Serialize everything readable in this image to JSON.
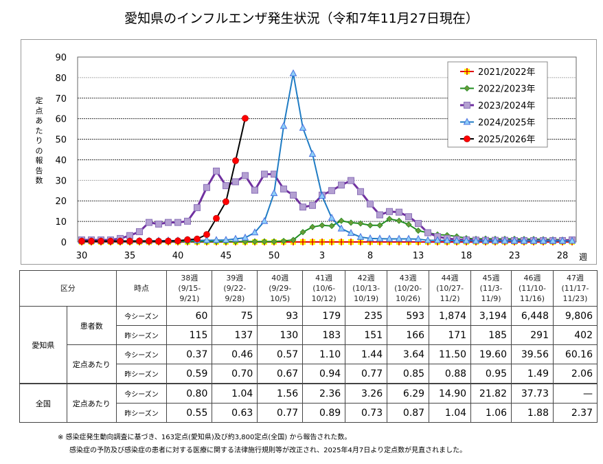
{
  "title": "愛知県のインフルエンザ発生状況（令和7年11月27日現在）",
  "chart_data": {
    "type": "line",
    "title": "愛知県のインフルエンザ発生状況（令和7年11月27日現在）",
    "ylabel": "定点あたりの報告数",
    "xunit": "週",
    "ylim": [
      0,
      90
    ],
    "yticks": [
      0,
      10,
      20,
      30,
      40,
      50,
      60,
      70,
      80,
      90
    ],
    "grid": true,
    "legend_position": "top-right",
    "weeks": [
      30,
      31,
      32,
      33,
      34,
      35,
      36,
      37,
      38,
      39,
      40,
      41,
      42,
      43,
      44,
      45,
      46,
      47,
      48,
      49,
      50,
      51,
      52,
      1,
      2,
      3,
      4,
      5,
      6,
      7,
      8,
      9,
      10,
      11,
      12,
      13,
      14,
      15,
      16,
      17,
      18,
      19,
      20,
      21,
      22,
      23,
      24,
      25,
      26,
      27,
      28,
      29
    ],
    "xtick_labels": [
      "30",
      "35",
      "40",
      "45",
      "50",
      "3",
      "8",
      "13",
      "18",
      "23",
      "28"
    ],
    "series": [
      {
        "name": "2021/2022年",
        "color": "#e00000",
        "marker": "plus",
        "marker_fill": "#ffff00",
        "values": [
          0,
          0,
          0,
          0,
          0,
          0,
          0,
          0,
          0,
          0,
          0,
          0,
          0,
          0,
          0,
          0,
          0,
          0,
          0,
          0,
          0,
          0,
          0,
          0,
          0,
          0,
          0,
          0,
          0,
          0,
          0,
          0,
          0,
          0,
          0,
          0,
          0,
          0,
          0,
          0,
          0,
          0,
          0,
          0,
          0,
          0,
          0,
          0,
          0,
          0,
          0,
          0
        ]
      },
      {
        "name": "2022/2023年",
        "color": "#1e8c1e",
        "marker": "diamond",
        "marker_fill": "#6a9a3a",
        "values": [
          0.2,
          0.2,
          0.2,
          0.2,
          0.2,
          0.2,
          0.2,
          0.2,
          0.2,
          0.2,
          0.2,
          0.2,
          0.2,
          0.2,
          0.2,
          0.2,
          0.2,
          0.2,
          0.2,
          0.2,
          0.2,
          0.5,
          1.0,
          4.8,
          7.3,
          8.1,
          7.8,
          10.3,
          9.4,
          9.0,
          8.1,
          8.1,
          11.2,
          10.3,
          8.5,
          5.5,
          4.5,
          3.6,
          3.3,
          2.7,
          1.8,
          1.5,
          1.6,
          1.5,
          1.5,
          1.5,
          1.4,
          1.4,
          1.3,
          1.2,
          1.1,
          1.0
        ]
      },
      {
        "name": "2023/2024年",
        "color": "#7030a0",
        "marker": "square",
        "marker_fill": "#b4a0d2",
        "values": [
          1.0,
          1.0,
          1.0,
          1.0,
          1.7,
          3.1,
          5.0,
          9.5,
          8.7,
          9.5,
          9.5,
          10.1,
          16.7,
          26.5,
          34.5,
          27.4,
          29.3,
          32.3,
          25.2,
          33.0,
          33.0,
          25.8,
          22.8,
          17.0,
          17.8,
          22.8,
          25.0,
          27.7,
          29.9,
          24.5,
          18.5,
          13.2,
          14.8,
          14.5,
          12.3,
          9.0,
          4.5,
          2.6,
          1.7,
          1.2,
          1.0,
          0.9,
          0.8,
          0.8,
          0.8,
          0.7,
          0.7,
          0.7,
          0.7,
          0.7,
          0.7,
          1.0
        ]
      },
      {
        "name": "2024/2025年",
        "color": "#1f7cc4",
        "marker": "triangle",
        "marker_fill": "#8ed0f8",
        "values": [
          0.5,
          0.5,
          0.5,
          0.5,
          0.5,
          0.5,
          0.5,
          0.5,
          0.59,
          0.7,
          0.67,
          0.94,
          0.77,
          0.85,
          0.88,
          0.95,
          1.49,
          2.06,
          4.6,
          10.1,
          23.7,
          56.4,
          82.0,
          55.5,
          42.8,
          22.4,
          11.7,
          6.5,
          4.3,
          2.4,
          1.7,
          1.6,
          1.5,
          1.5,
          1.5,
          1.4,
          0.8,
          0.8,
          0.7,
          0.6,
          0.6,
          0.5,
          0.5,
          0.5,
          0.5,
          0.5,
          0.5,
          0.5,
          0.5,
          0.5,
          0.5,
          0.5
        ]
      },
      {
        "name": "2025/2026年",
        "color": "#000000",
        "marker": "circle",
        "marker_fill": "#ff0000",
        "values": [
          0.4,
          0.4,
          0.4,
          0.4,
          0.4,
          0.4,
          0.5,
          0.5,
          0.37,
          0.46,
          0.57,
          1.1,
          1.44,
          3.64,
          11.5,
          19.6,
          39.56,
          60.16
        ]
      }
    ]
  },
  "table": {
    "header": {
      "kubun": "区分",
      "jiten": "時点"
    },
    "weeks": [
      {
        "week": "38週",
        "range1": "(9/15-",
        "range2": "9/21)"
      },
      {
        "week": "39週",
        "range1": "(9/22-",
        "range2": "9/28)"
      },
      {
        "week": "40週",
        "range1": "(9/29-",
        "range2": "10/5)"
      },
      {
        "week": "41週",
        "range1": "(10/6-",
        "range2": "10/12)"
      },
      {
        "week": "42週",
        "range1": "(10/13-",
        "range2": "10/19)"
      },
      {
        "week": "43週",
        "range1": "(10/20-",
        "range2": "10/26)"
      },
      {
        "week": "44週",
        "range1": "(10/27-",
        "range2": "11/2)"
      },
      {
        "week": "45週",
        "range1": "(11/3-",
        "range2": "11/9)"
      },
      {
        "week": "46週",
        "range1": "(11/10-",
        "range2": "11/16)"
      },
      {
        "week": "47週",
        "range1": "(11/17-",
        "range2": "11/23)"
      }
    ],
    "region_aichi": "愛知県",
    "region_national": "全国",
    "cat_patients": "患者数",
    "cat_per_site": "定点あたり",
    "this_season": "今シーズン",
    "last_season": "昨シーズン",
    "rows": {
      "aichi_patients_this": [
        "60",
        "75",
        "93",
        "179",
        "235",
        "593",
        "1,874",
        "3,194",
        "6,448",
        "9,806"
      ],
      "aichi_patients_last": [
        "115",
        "137",
        "130",
        "183",
        "151",
        "166",
        "171",
        "185",
        "291",
        "402"
      ],
      "aichi_per_this": [
        "0.37",
        "0.46",
        "0.57",
        "1.10",
        "1.44",
        "3.64",
        "11.50",
        "19.60",
        "39.56",
        "60.16"
      ],
      "aichi_per_last": [
        "0.59",
        "0.70",
        "0.67",
        "0.94",
        "0.77",
        "0.85",
        "0.88",
        "0.95",
        "1.49",
        "2.06"
      ],
      "national_per_this": [
        "0.80",
        "1.04",
        "1.56",
        "2.36",
        "3.26",
        "6.29",
        "14.90",
        "21.82",
        "37.73",
        "—"
      ],
      "national_per_last": [
        "0.55",
        "0.63",
        "0.77",
        "0.89",
        "0.73",
        "0.87",
        "1.04",
        "1.06",
        "1.88",
        "2.37"
      ]
    }
  },
  "notes": {
    "line1": "※ 感染症発生動向調査に基づき、163定点(愛知県)及び約3,800定点(全国) から報告された数。",
    "line2": "感染症の予防及び感染症の患者に対する医療に関する法律施行規則等が改正され、2025年4月7日より定点数が見直されました。"
  }
}
